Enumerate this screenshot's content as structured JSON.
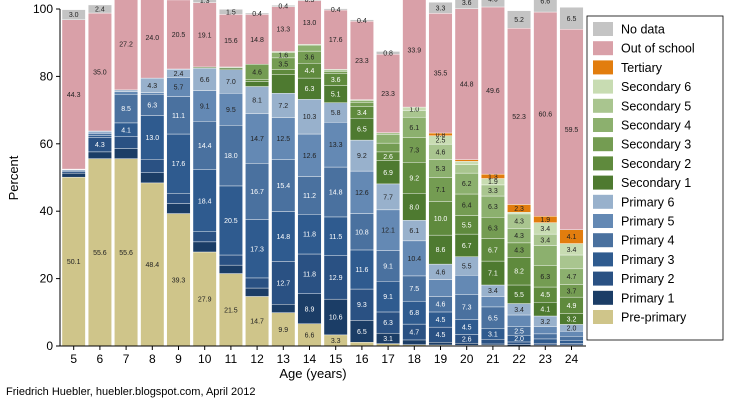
{
  "credit": "Friedrich Huebler, huebler.blogspot.com, April 2012",
  "chart_data": {
    "type": "bar",
    "stacked": true,
    "xlabel": "Age (years)",
    "ylabel": "Percent",
    "ylim": [
      0,
      100
    ],
    "yticks": [
      0,
      20,
      40,
      60,
      80,
      100
    ],
    "grid": false,
    "legend_position": "right",
    "categories": [
      "5",
      "6",
      "7",
      "8",
      "9",
      "10",
      "11",
      "12",
      "13",
      "14",
      "15",
      "16",
      "17",
      "18",
      "19",
      "20",
      "21",
      "22",
      "23",
      "24"
    ],
    "series": [
      {
        "name": "Pre-primary",
        "color": "#cfc58a",
        "values": [
          50.1,
          55.6,
          55.6,
          48.4,
          39.3,
          27.9,
          21.5,
          14.7,
          9.9,
          6.6,
          3.3,
          1.1,
          0.7,
          0.4,
          0.3,
          0.2,
          0.2,
          0.1,
          0.1,
          0.1
        ],
        "labels": [
          "50.1",
          "55.6",
          "55.6",
          "48.4",
          "39.3",
          "27.9",
          "21.5",
          "14.7",
          "9.9",
          "6.6",
          "3.3",
          "",
          "",
          "",
          "",
          "",
          "",
          "",
          "",
          ""
        ]
      },
      {
        "name": "Primary 1",
        "color": "#1b3d66",
        "values": [
          1.2,
          2.0,
          3.0,
          3.0,
          3.0,
          3.0,
          2.5,
          2.5,
          2.5,
          8.9,
          10.6,
          6.5,
          3.1,
          1.4,
          0.8,
          0.6,
          0.4,
          0.3,
          0.2,
          0.2
        ],
        "labels": [
          "",
          "",
          "",
          "",
          "",
          "",
          "",
          "",
          "",
          "8.9",
          "10.6",
          "6.5",
          "3.1",
          "",
          "",
          "",
          "",
          "",
          "",
          ""
        ]
      },
      {
        "name": "Primary 2",
        "color": "#2a5183",
        "values": [
          0.5,
          4.3,
          3.5,
          4.0,
          3.0,
          3.0,
          3.0,
          3.0,
          12.7,
          11.8,
          12.9,
          9.3,
          6.3,
          4.7,
          4.5,
          2.6,
          1.4,
          0.8,
          0.5,
          0.4
        ],
        "labels": [
          "",
          "4.3",
          "",
          "",
          "",
          "",
          "",
          "",
          "12.7",
          "11.8",
          "12.9",
          "9.3",
          "6.3",
          "4.7",
          "4.5",
          "2.6",
          "",
          "",
          "",
          ""
        ]
      },
      {
        "name": "Primary 3",
        "color": "#2f5b8f",
        "values": [
          0.3,
          0.6,
          4.1,
          13.0,
          17.6,
          18.4,
          20.5,
          17.3,
          14.8,
          11.8,
          11.5,
          11.6,
          9.1,
          6.8,
          4.5,
          4.5,
          3.1,
          2.0,
          1.3,
          1.0
        ],
        "labels": [
          "",
          "",
          "4.1",
          "13.0",
          "17.6",
          "18.4",
          "20.5",
          "17.3",
          "14.8",
          "11.8",
          "11.5",
          "11.6",
          "9.1",
          "6.8",
          "4.5",
          "4.5",
          "3.1",
          "2.0",
          "",
          ""
        ]
      },
      {
        "name": "Primary 4",
        "color": "#4a719f",
        "values": [
          0.2,
          0.5,
          8.5,
          6.3,
          11.1,
          14.4,
          18.0,
          16.7,
          15.4,
          11.2,
          14.8,
          10.8,
          9.1,
          7.5,
          4.6,
          7.3,
          6.5,
          2.5,
          1.5,
          1.2
        ],
        "labels": [
          "",
          "",
          "8.5",
          "6.3",
          "11.1",
          "14.4",
          "18.0",
          "16.7",
          "15.4",
          "11.2",
          "14.8",
          "10.8",
          "9.1",
          "7.5",
          "4.6",
          "7.3",
          "6.5",
          "2.5",
          "",
          ""
        ]
      },
      {
        "name": "Primary 5",
        "color": "#6489b4",
        "values": [
          0.1,
          0.5,
          0.8,
          0.5,
          5.7,
          9.1,
          9.5,
          14.7,
          12.5,
          12.6,
          13.3,
          12.6,
          12.1,
          10.4,
          5.0,
          5.8,
          3.1,
          3.5,
          2.1,
          1.5
        ],
        "labels": [
          "",
          "",
          "",
          "",
          "5.7",
          "9.1",
          "9.5",
          "14.7",
          "12.5",
          "12.6",
          "13.3",
          "12.6",
          "12.1",
          "10.4",
          "",
          "",
          "",
          "",
          "",
          ""
        ]
      },
      {
        "name": "Primary 6",
        "color": "#98b1cc",
        "values": [
          0.1,
          0.3,
          0.5,
          4.3,
          2.4,
          6.6,
          7.0,
          8.1,
          7.2,
          10.3,
          5.8,
          9.2,
          7.7,
          6.1,
          4.6,
          5.5,
          3.4,
          3.4,
          3.2,
          2.0
        ],
        "labels": [
          "",
          "",
          "",
          "4.3",
          "2.4",
          "6.6",
          "7.0",
          "8.1",
          "7.2",
          "10.3",
          "5.8",
          "9.2",
          "7.7",
          "6.1",
          "4.6",
          "5.5",
          "3.4",
          "3.4",
          "3.2",
          "2.0"
        ]
      },
      {
        "name": "Secondary 1",
        "color": "#4e7a30",
        "values": [
          0,
          0,
          0,
          0,
          0.1,
          0.3,
          0.5,
          1.5,
          5.5,
          6.3,
          5.1,
          6.5,
          6.9,
          8.0,
          8.6,
          6.7,
          7.1,
          5.5,
          4.1,
          3.2
        ],
        "labels": [
          "",
          "",
          "",
          "",
          "",
          "",
          "",
          "",
          "",
          "6.3",
          "5.1",
          "6.5",
          "6.9",
          "8.0",
          "8.6",
          "6.7",
          "7.1",
          "5.5",
          "4.1",
          "3.2"
        ]
      },
      {
        "name": "Secondary 2",
        "color": "#5f8a3d",
        "values": [
          0,
          0,
          0,
          0,
          0,
          0.1,
          0.1,
          0.5,
          1.5,
          4.4,
          3.6,
          3.4,
          2.6,
          9.2,
          10.0,
          5.5,
          6.7,
          8.2,
          4.5,
          4.9
        ],
        "labels": [
          "",
          "",
          "",
          "",
          "",
          "",
          "",
          "",
          "",
          "4.4",
          "3.6",
          "3.4",
          "2.6",
          "9.2",
          "10.0",
          "5.5",
          "6.7",
          "8.2",
          "4.5",
          "4.9"
        ]
      },
      {
        "name": "Secondary 3",
        "color": "#749c52",
        "values": [
          0,
          0,
          0,
          0,
          0,
          0,
          0.2,
          4.6,
          3.5,
          3.6,
          0.5,
          1.3,
          2.6,
          7.3,
          7.1,
          6.4,
          6.3,
          4.3,
          6.3,
          3.7
        ],
        "labels": [
          "",
          "",
          "",
          "",
          "",
          "",
          "",
          "4.6",
          "3.5",
          "3.6",
          "",
          "",
          "",
          "7.3",
          "7.1",
          "6.4",
          "6.3",
          "4.3",
          "6.3",
          "3.7"
        ]
      },
      {
        "name": "Secondary 4",
        "color": "#8cb06e",
        "values": [
          0,
          0,
          0,
          0,
          0,
          0,
          0,
          0,
          1.6,
          1.8,
          0.5,
          0.5,
          2.6,
          6.1,
          5.3,
          6.2,
          6.3,
          4.3,
          6.0,
          4.7
        ],
        "labels": [
          "",
          "",
          "",
          "",
          "",
          "",
          "",
          "",
          "1.6",
          "",
          "",
          "",
          "",
          "6.1",
          "5.3",
          "6.2",
          "6.3",
          "4.3",
          "",
          "4.7"
        ]
      },
      {
        "name": "Secondary 5",
        "color": "#a9c58f",
        "values": [
          0,
          0,
          0,
          0,
          0,
          0,
          0,
          0,
          0.3,
          0.2,
          0.2,
          0.3,
          0.5,
          2.0,
          4.6,
          2.5,
          3.3,
          4.3,
          3.4,
          4.1
        ],
        "labels": [
          "",
          "",
          "",
          "",
          "",
          "",
          "",
          "",
          "",
          "",
          "",
          "",
          "",
          "",
          "4.6",
          "",
          "3.3",
          "4.3",
          "3.4",
          ""
        ]
      },
      {
        "name": "Secondary 6",
        "color": "#c8dcb2",
        "values": [
          0,
          0,
          0,
          0,
          0,
          0,
          0,
          0,
          0,
          0,
          0,
          0,
          0,
          1.0,
          2.5,
          1.0,
          1.9,
          0.5,
          3.4,
          3.4
        ],
        "labels": [
          "",
          "",
          "",
          "",
          "",
          "",
          "",
          "",
          "",
          "",
          "",
          "",
          "",
          "1.0",
          "2.5",
          "",
          "1.9",
          "",
          "3.4",
          "3.4"
        ]
      },
      {
        "name": "Tertiary",
        "color": "#e27d0e",
        "values": [
          0,
          0,
          0,
          0,
          0,
          0,
          0,
          0,
          0,
          0,
          0,
          0,
          0,
          0,
          0.8,
          0.5,
          1.3,
          2.3,
          1.9,
          4.1
        ],
        "labels": [
          "",
          "",
          "",
          "",
          "",
          "",
          "",
          "",
          "",
          "",
          "",
          "",
          "",
          "",
          "0.8",
          "",
          "1.3",
          "2.3",
          "1.9",
          "4.1"
        ]
      },
      {
        "name": "Out of school",
        "color": "#d9a0a8",
        "values": [
          44.3,
          35.0,
          27.2,
          24.0,
          20.5,
          19.1,
          15.6,
          14.8,
          13.3,
          13.0,
          17.6,
          23.3,
          23.3,
          33.9,
          35.5,
          44.8,
          49.6,
          52.3,
          60.6,
          59.5
        ],
        "labels": [
          "44.3",
          "35.0",
          "27.2",
          "24.0",
          "20.5",
          "19.1",
          "15.6",
          "14.8",
          "13.3",
          "13.0",
          "17.6",
          "23.3",
          "23.3",
          "33.9",
          "35.5",
          "44.8",
          "49.6",
          "52.3",
          "60.6",
          "59.5"
        ]
      },
      {
        "name": "No data",
        "color": "#c4c4c4",
        "values": [
          3.0,
          2.4,
          2.7,
          1.9,
          2.1,
          1.3,
          1.5,
          0.4,
          0.4,
          0.5,
          0.4,
          0.4,
          0.8,
          1.4,
          3.3,
          3.6,
          4.6,
          5.2,
          6.6,
          6.5
        ],
        "labels": [
          "3.0",
          "2.4",
          "2.7",
          "1.9",
          "2.1",
          "1.3",
          "1.5",
          "0.4",
          "0.4",
          "0.5",
          "0.4",
          "0.4",
          "0.8",
          "1.4",
          "3.3",
          "3.6",
          "4.6",
          "5.2",
          "6.6",
          "6.5"
        ]
      }
    ]
  }
}
